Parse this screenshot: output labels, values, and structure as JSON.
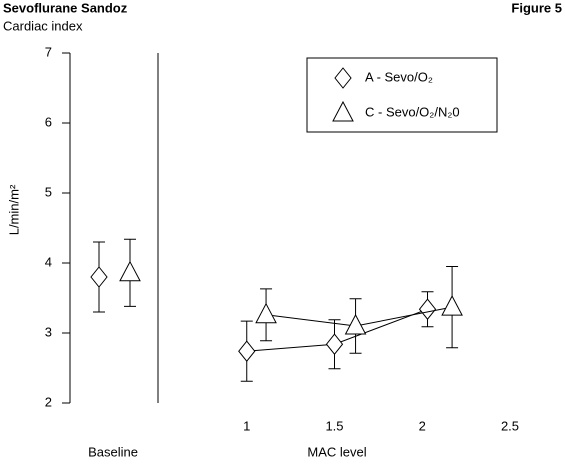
{
  "chart_data": {
    "type": "scatter",
    "title": "Sevoflurane Sandoz",
    "subtitle": "Cardiac index",
    "figure_label": "Figure 5",
    "xlabel": "MAC level",
    "ylabel": "L/min/m²",
    "baseline_label": "Baseline",
    "xlim": [
      0.5,
      2.5
    ],
    "xticks": [
      1,
      1.5,
      2,
      2.5
    ],
    "ylim": [
      2,
      7
    ],
    "yticks": [
      2,
      3,
      4,
      5,
      6,
      7
    ],
    "series": [
      {
        "name": "A - Sevo/O₂",
        "marker": "diamond",
        "color": "#000000",
        "baseline": 3.8,
        "baseline_error": 0.5,
        "x": [
          1,
          1.5,
          2.03
        ],
        "values": [
          2.74,
          2.84,
          3.34
        ],
        "errors": [
          0.43,
          0.35,
          0.25
        ]
      },
      {
        "name": "C - Sevo/O₂/N₂0",
        "marker": "triangle",
        "color": "#000000",
        "baseline": 3.86,
        "baseline_error": 0.48,
        "x": [
          1.11,
          1.62,
          2.17
        ],
        "values": [
          3.26,
          3.1,
          3.37
        ],
        "errors": [
          0.37,
          0.39,
          0.58
        ]
      }
    ]
  }
}
